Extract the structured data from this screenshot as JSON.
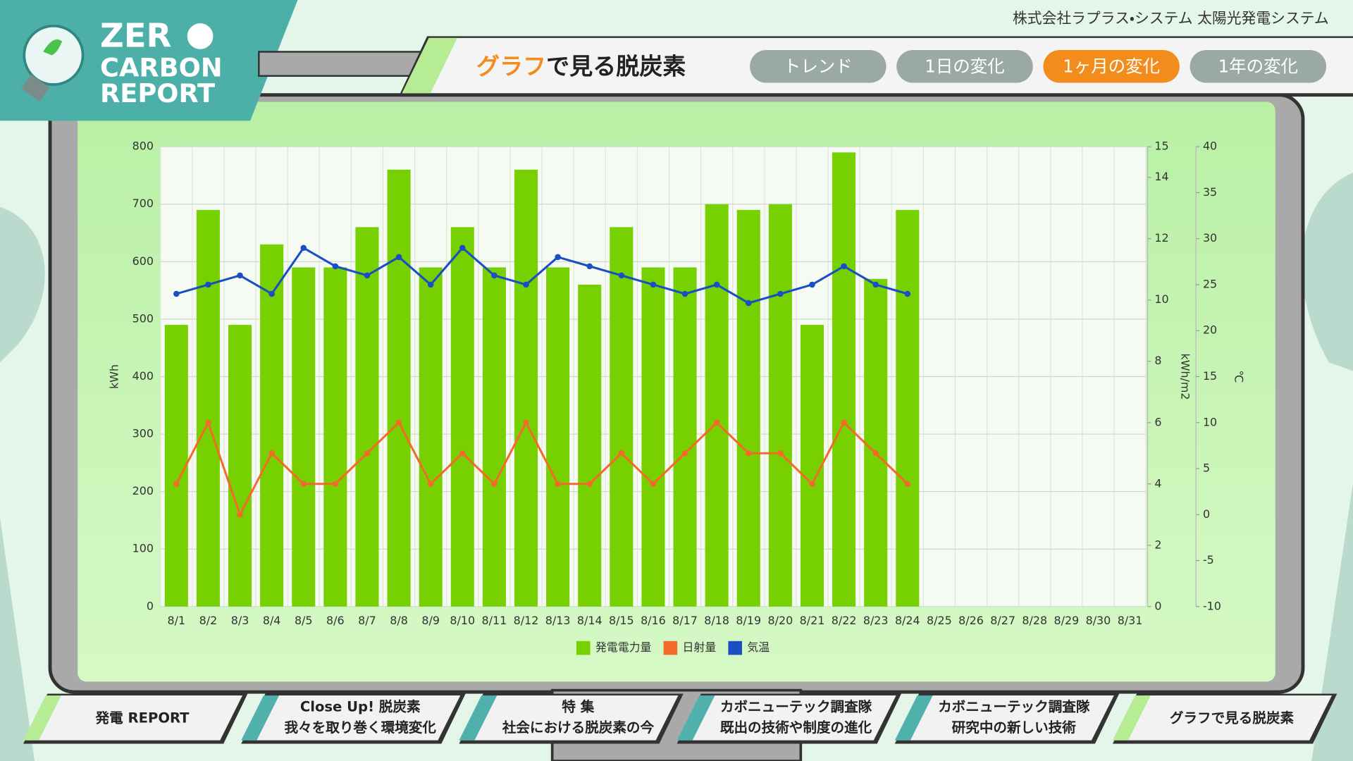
{
  "header": {
    "company": "株式会社ラプラス・システム 太陽光発電システム",
    "logo": [
      "ZER",
      "CARBON",
      "REPORT"
    ],
    "title_accent": "グラフ",
    "title_rest": "で見る脱炭素",
    "tabs": [
      "トレンド",
      "1日の変化",
      "1ヶ月の変化",
      "1年の変化"
    ],
    "active_tab": 2
  },
  "chart_data": {
    "type": "bar_line",
    "categories": [
      "8/1",
      "8/2",
      "8/3",
      "8/4",
      "8/5",
      "8/6",
      "8/7",
      "8/8",
      "8/9",
      "8/10",
      "8/11",
      "8/12",
      "8/13",
      "8/14",
      "8/15",
      "8/16",
      "8/17",
      "8/18",
      "8/19",
      "8/20",
      "8/21",
      "8/22",
      "8/23",
      "8/24",
      "8/25",
      "8/26",
      "8/27",
      "8/28",
      "8/29",
      "8/30",
      "8/31"
    ],
    "series": [
      {
        "name": "発電電力量",
        "type": "bar",
        "axis": "y",
        "color": "#77d100",
        "values": [
          490,
          690,
          490,
          630,
          590,
          590,
          660,
          760,
          590,
          660,
          590,
          760,
          590,
          560,
          660,
          590,
          590,
          700,
          690,
          700,
          490,
          790,
          570,
          690,
          null,
          null,
          null,
          null,
          null,
          null,
          null
        ]
      },
      {
        "name": "日射量",
        "type": "line",
        "axis": "y2",
        "color": "#f26b2a",
        "values": [
          4,
          6,
          3,
          5,
          4,
          4,
          5,
          6,
          4,
          5,
          4,
          6,
          4,
          4,
          5,
          4,
          5,
          6,
          5,
          5,
          4,
          6,
          5,
          4,
          null,
          null,
          null,
          null,
          null,
          null,
          null
        ]
      },
      {
        "name": "気温",
        "type": "line",
        "axis": "y3",
        "color": "#1a4fc4",
        "values": [
          24,
          25,
          26,
          24,
          29,
          27,
          26,
          28,
          25,
          29,
          26,
          25,
          28,
          27,
          26,
          25,
          24,
          25,
          23,
          24,
          25,
          27,
          25,
          24,
          null,
          null,
          null,
          null,
          null,
          null,
          null
        ]
      }
    ],
    "ylabel": "kWh",
    "y2label": "kWh/m2",
    "y3label": "℃",
    "ylim": [
      0,
      800
    ],
    "yticks": [
      0,
      100,
      200,
      300,
      400,
      500,
      600,
      700,
      800
    ],
    "y2lim": [
      0,
      15
    ],
    "y2ticks": [
      0,
      2,
      4,
      6,
      8,
      10,
      12,
      14,
      15
    ],
    "y3lim": [
      -10,
      40
    ],
    "y3ticks": [
      -10,
      -5,
      0,
      5,
      10,
      15,
      20,
      25,
      30,
      35,
      40
    ],
    "grid": true,
    "legend": "bottom"
  },
  "nav": [
    [
      "発電 REPORT"
    ],
    [
      "Close Up! 脱炭素",
      "我々を取り巻く環境変化"
    ],
    [
      "特 集",
      "社会における脱炭素の今"
    ],
    [
      "カボニューテック調査隊",
      "既出の技術や制度の進化"
    ],
    [
      "カボニューテック調査隊",
      "研究中の新しい技術"
    ],
    [
      "グラフで見る脱炭素"
    ]
  ]
}
